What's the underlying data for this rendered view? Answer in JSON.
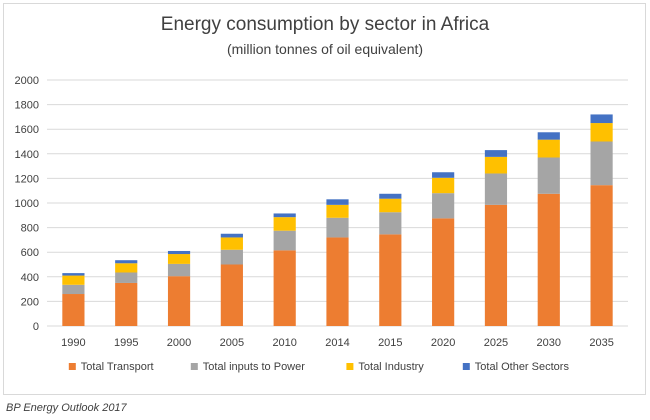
{
  "chart_data": {
    "type": "bar",
    "stacked": true,
    "title": "Energy consumption by sector in Africa",
    "subtitle": "(million tonnes of oil equivalent)",
    "xlabel": "",
    "ylabel": "",
    "ylim": [
      0,
      2000
    ],
    "yticks": [
      "0",
      "200",
      "400",
      "600",
      "800",
      "1000",
      "1200",
      "1400",
      "1600",
      "1800",
      "2000"
    ],
    "grid": true,
    "legend_position": "bottom",
    "categories": [
      "1990",
      "1995",
      "2000",
      "2005",
      "2010",
      "2014",
      "2015",
      "2020",
      "2025",
      "2030",
      "2035"
    ],
    "series": [
      {
        "name": "Total Transport",
        "color": "#ed7d31",
        "values": [
          260,
          350,
          405,
          500,
          615,
          720,
          745,
          875,
          985,
          1075,
          1145
        ]
      },
      {
        "name": "Total inputs to Power",
        "color": "#a5a5a5",
        "values": [
          75,
          85,
          100,
          120,
          160,
          160,
          180,
          205,
          255,
          295,
          355
        ]
      },
      {
        "name": "Total Industry",
        "color": "#ffc000",
        "values": [
          75,
          75,
          80,
          100,
          110,
          105,
          110,
          125,
          135,
          145,
          150
        ]
      },
      {
        "name": "Total Other Sectors",
        "color": "#4472c4",
        "values": [
          20,
          25,
          25,
          30,
          30,
          45,
          40,
          45,
          55,
          60,
          70
        ]
      }
    ]
  },
  "source": "BP Energy Outlook 2017"
}
